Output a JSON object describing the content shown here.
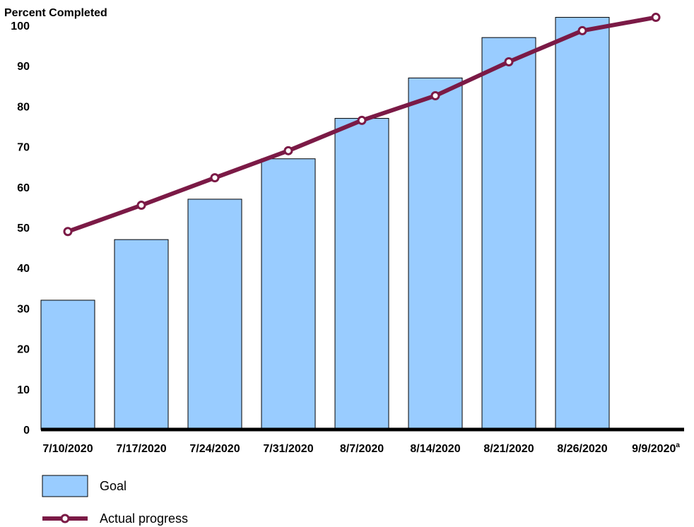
{
  "chart_data": {
    "type": "bar",
    "ylabel": "Percent Completed",
    "categories": [
      "7/10/2020",
      "7/17/2020",
      "7/24/2020",
      "7/31/2020",
      "8/7/2020",
      "8/14/2020",
      "8/21/2020",
      "8/26/2020",
      "9/9/2020"
    ],
    "category_footnotes": [
      "",
      "",
      "",
      "",
      "",
      "",
      "",
      "",
      "a"
    ],
    "ylim": [
      0,
      100
    ],
    "yticks": [
      0,
      10,
      20,
      30,
      40,
      50,
      60,
      70,
      80,
      90,
      100
    ],
    "grid": false,
    "series": [
      {
        "name": "Goal",
        "type": "bar",
        "color": "#99ccff",
        "values": [
          32,
          47,
          57,
          67,
          77,
          87,
          97,
          102,
          null
        ]
      },
      {
        "name": "Actual progress",
        "type": "line",
        "color": "#7b1a46",
        "marker": "open-circle",
        "values": [
          49,
          55.5,
          62.3,
          69,
          76.5,
          82.6,
          91,
          98.7,
          102
        ]
      }
    ],
    "legend": {
      "position": "bottom-left"
    }
  }
}
